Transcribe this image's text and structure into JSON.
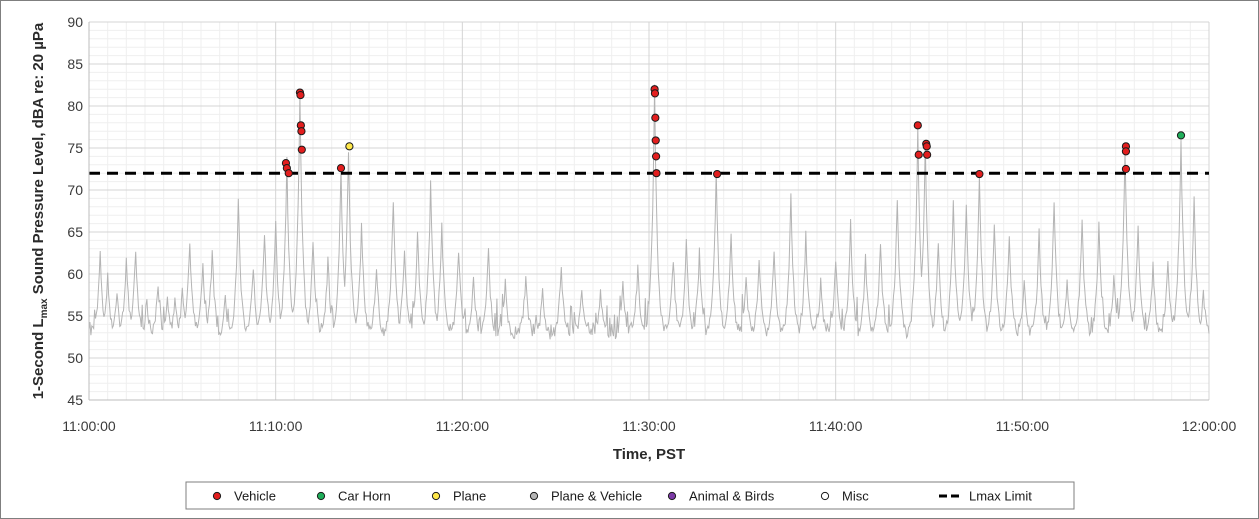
{
  "chart_data": {
    "type": "scatter",
    "xlabel": "Time, PST",
    "ylabel_parts": [
      "1-Second L",
      "max",
      " Sound Pressure Level, dBA re: 20 µPa"
    ],
    "ylim": [
      45,
      90
    ],
    "yticks": [
      45,
      50,
      55,
      60,
      65,
      70,
      75,
      80,
      85,
      90
    ],
    "xlim_minutes": [
      0,
      60
    ],
    "xticks": [
      {
        "value": 0,
        "label": "11:00:00"
      },
      {
        "value": 10,
        "label": "11:10:00"
      },
      {
        "value": 20,
        "label": "11:20:00"
      },
      {
        "value": 30,
        "label": "11:30:00"
      },
      {
        "value": 40,
        "label": "11:40:00"
      },
      {
        "value": 50,
        "label": "11:50:00"
      },
      {
        "value": 60,
        "label": "12:00:00"
      }
    ],
    "grid": true,
    "legend_position": "bottom",
    "lmax_limit": 72,
    "background_trace": {
      "color": "#b4b4b4",
      "peaks": [
        [
          0.6,
          62.5
        ],
        [
          1.0,
          60
        ],
        [
          1.5,
          58
        ],
        [
          2.0,
          62
        ],
        [
          2.5,
          63
        ],
        [
          3.1,
          57
        ],
        [
          3.7,
          59
        ],
        [
          4.2,
          57
        ],
        [
          4.6,
          57
        ],
        [
          5.0,
          58
        ],
        [
          5.4,
          64
        ],
        [
          6.1,
          61
        ],
        [
          6.6,
          63
        ],
        [
          7.3,
          57
        ],
        [
          8.0,
          69
        ],
        [
          8.8,
          61
        ],
        [
          9.4,
          65
        ],
        [
          10.0,
          66
        ],
        [
          10.6,
          73.5
        ],
        [
          11.3,
          81.5
        ],
        [
          12.0,
          64
        ],
        [
          12.8,
          62
        ],
        [
          13.5,
          72.5
        ],
        [
          13.9,
          75
        ],
        [
          14.6,
          66
        ],
        [
          15.4,
          61
        ],
        [
          16.3,
          69
        ],
        [
          16.9,
          63
        ],
        [
          17.6,
          65
        ],
        [
          18.3,
          71
        ],
        [
          18.9,
          66
        ],
        [
          19.8,
          63
        ],
        [
          20.6,
          60
        ],
        [
          21.4,
          63
        ],
        [
          22.3,
          59
        ],
        [
          23.4,
          60
        ],
        [
          24.3,
          58
        ],
        [
          25.3,
          61
        ],
        [
          26.4,
          58
        ],
        [
          27.4,
          58
        ],
        [
          28.6,
          59
        ],
        [
          29.4,
          61
        ],
        [
          30.3,
          82
        ],
        [
          31.3,
          62
        ],
        [
          32.0,
          64
        ],
        [
          32.7,
          63
        ],
        [
          33.6,
          72
        ],
        [
          34.4,
          65
        ],
        [
          35.2,
          60
        ],
        [
          35.9,
          62
        ],
        [
          36.7,
          63
        ],
        [
          37.6,
          69
        ],
        [
          38.4,
          65
        ],
        [
          39.2,
          59
        ],
        [
          40.0,
          62
        ],
        [
          40.8,
          66
        ],
        [
          41.6,
          62
        ],
        [
          42.4,
          64
        ],
        [
          43.3,
          69
        ],
        [
          44.4,
          77.7
        ],
        [
          44.8,
          75.5
        ],
        [
          45.5,
          64
        ],
        [
          46.3,
          69
        ],
        [
          47.0,
          68.5
        ],
        [
          47.7,
          72
        ],
        [
          48.5,
          66
        ],
        [
          49.3,
          65
        ],
        [
          50.1,
          59
        ],
        [
          50.9,
          65
        ],
        [
          51.7,
          69
        ],
        [
          52.4,
          59
        ],
        [
          53.2,
          67
        ],
        [
          54.1,
          66
        ],
        [
          54.9,
          60
        ],
        [
          55.5,
          75.2
        ],
        [
          56.2,
          66
        ],
        [
          57.0,
          61
        ],
        [
          57.8,
          62
        ],
        [
          58.5,
          76.5
        ],
        [
          59.2,
          69
        ],
        [
          59.7,
          58
        ]
      ]
    },
    "series": [
      {
        "name": "Vehicle",
        "color": "#e31e1e",
        "points": [
          [
            10.55,
            73.2
          ],
          [
            10.6,
            72.6
          ],
          [
            10.7,
            72.0
          ],
          [
            11.3,
            81.6
          ],
          [
            11.33,
            81.3
          ],
          [
            11.35,
            77.7
          ],
          [
            11.38,
            77.0
          ],
          [
            11.4,
            74.8
          ],
          [
            13.5,
            72.6
          ],
          [
            30.3,
            82.0
          ],
          [
            30.32,
            81.5
          ],
          [
            30.34,
            78.6
          ],
          [
            30.36,
            75.9
          ],
          [
            30.38,
            74.0
          ],
          [
            30.4,
            72.0
          ],
          [
            33.65,
            71.9
          ],
          [
            44.4,
            77.7
          ],
          [
            44.45,
            74.2
          ],
          [
            44.85,
            75.5
          ],
          [
            44.88,
            75.2
          ],
          [
            44.9,
            74.2
          ],
          [
            47.7,
            71.9
          ],
          [
            55.55,
            75.2
          ],
          [
            55.55,
            74.6
          ],
          [
            55.55,
            72.5
          ]
        ]
      },
      {
        "name": "Car Horn",
        "color": "#1fae5a",
        "points": [
          [
            58.5,
            76.5
          ]
        ]
      },
      {
        "name": "Plane",
        "color": "#ffe84a",
        "points": [
          [
            13.95,
            75.2
          ]
        ]
      },
      {
        "name": "Plane & Vehicle",
        "color": "#b4b4b4",
        "points": []
      },
      {
        "name": "Animal & Birds",
        "color": "#7c3aa6",
        "points": []
      },
      {
        "name": "Misc",
        "color": "#ffffff",
        "points": []
      },
      {
        "name": "Lmax Limit",
        "color": "#000000",
        "style": "dashed",
        "points": [
          [
            0,
            72
          ],
          [
            60,
            72
          ]
        ]
      }
    ]
  }
}
